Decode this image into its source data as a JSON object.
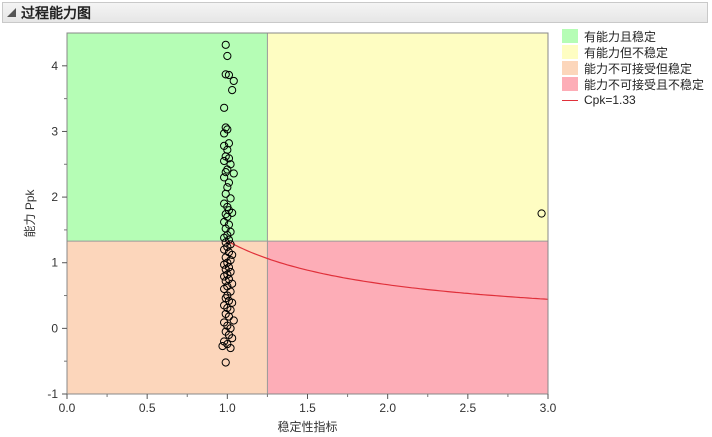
{
  "panel": {
    "title": "过程能力图"
  },
  "colors": {
    "capable_stable": "#b5fdb5",
    "capable_unstable": "#fefdc2",
    "incapable_stable": "#fcd6bb",
    "incapable_unstable": "#fdadb7",
    "curve": "#e0303a",
    "point": "#000000"
  },
  "legend": {
    "items": [
      {
        "label": "有能力且稳定",
        "color_key": "capable_stable"
      },
      {
        "label": "有能力但不稳定",
        "color_key": "capable_unstable"
      },
      {
        "label": "能力不可接受但稳定",
        "color_key": "incapable_stable"
      },
      {
        "label": "能力不可接受且不稳定",
        "color_key": "incapable_unstable"
      }
    ],
    "curve_label": "Cpk=1.33"
  },
  "chart_data": {
    "type": "scatter",
    "xlabel": "稳定性指标",
    "ylabel": "能力 Ppk",
    "xlim": [
      0,
      3
    ],
    "ylim": [
      -1,
      4.5
    ],
    "xticks": [
      "0.0",
      "0.5",
      "1.0",
      "1.5",
      "2.0",
      "2.5",
      "3.0"
    ],
    "xtick_values": [
      0,
      0.5,
      1,
      1.5,
      2,
      2.5,
      3
    ],
    "yticks": [
      "-1",
      "0",
      "1",
      "2",
      "3",
      "4"
    ],
    "ytick_values": [
      -1,
      0,
      1,
      2,
      3,
      4
    ],
    "stability_threshold": 1.25,
    "capability_threshold": 1.33,
    "curve": {
      "label": "Cpk=1.33",
      "x_from": 1.0,
      "x_to": 3.0
    },
    "points": [
      {
        "x": 0.99,
        "y": 4.32
      },
      {
        "x": 1.0,
        "y": 4.15
      },
      {
        "x": 0.99,
        "y": 3.87
      },
      {
        "x": 1.01,
        "y": 3.86
      },
      {
        "x": 1.04,
        "y": 3.77
      },
      {
        "x": 1.03,
        "y": 3.63
      },
      {
        "x": 0.98,
        "y": 3.36
      },
      {
        "x": 0.99,
        "y": 3.06
      },
      {
        "x": 1.0,
        "y": 3.03
      },
      {
        "x": 0.98,
        "y": 2.97
      },
      {
        "x": 1.01,
        "y": 2.82
      },
      {
        "x": 0.98,
        "y": 2.78
      },
      {
        "x": 1.0,
        "y": 2.72
      },
      {
        "x": 0.99,
        "y": 2.62
      },
      {
        "x": 1.01,
        "y": 2.59
      },
      {
        "x": 0.98,
        "y": 2.55
      },
      {
        "x": 1.02,
        "y": 2.5
      },
      {
        "x": 1.0,
        "y": 2.42
      },
      {
        "x": 0.99,
        "y": 2.38
      },
      {
        "x": 1.04,
        "y": 2.36
      },
      {
        "x": 0.98,
        "y": 2.3
      },
      {
        "x": 1.01,
        "y": 2.22
      },
      {
        "x": 1.0,
        "y": 2.15
      },
      {
        "x": 0.99,
        "y": 2.05
      },
      {
        "x": 1.02,
        "y": 1.98
      },
      {
        "x": 0.98,
        "y": 1.9
      },
      {
        "x": 1.0,
        "y": 1.85
      },
      {
        "x": 1.01,
        "y": 1.8
      },
      {
        "x": 1.03,
        "y": 1.76
      },
      {
        "x": 0.99,
        "y": 1.74
      },
      {
        "x": 1.0,
        "y": 1.7
      },
      {
        "x": 0.98,
        "y": 1.62
      },
      {
        "x": 1.01,
        "y": 1.58
      },
      {
        "x": 0.99,
        "y": 1.52
      },
      {
        "x": 1.02,
        "y": 1.47
      },
      {
        "x": 1.0,
        "y": 1.42
      },
      {
        "x": 0.98,
        "y": 1.38
      },
      {
        "x": 1.01,
        "y": 1.35
      },
      {
        "x": 0.99,
        "y": 1.31
      },
      {
        "x": 1.02,
        "y": 1.28
      },
      {
        "x": 1.0,
        "y": 1.24
      },
      {
        "x": 0.98,
        "y": 1.2
      },
      {
        "x": 1.01,
        "y": 1.16
      },
      {
        "x": 1.03,
        "y": 1.12
      },
      {
        "x": 0.99,
        "y": 1.08
      },
      {
        "x": 1.02,
        "y": 1.04
      },
      {
        "x": 1.0,
        "y": 1.0
      },
      {
        "x": 0.98,
        "y": 0.97
      },
      {
        "x": 1.01,
        "y": 0.93
      },
      {
        "x": 0.99,
        "y": 0.9
      },
      {
        "x": 1.02,
        "y": 0.86
      },
      {
        "x": 1.0,
        "y": 0.82
      },
      {
        "x": 0.98,
        "y": 0.79
      },
      {
        "x": 1.01,
        "y": 0.75
      },
      {
        "x": 0.99,
        "y": 0.72
      },
      {
        "x": 1.03,
        "y": 0.68
      },
      {
        "x": 1.0,
        "y": 0.64
      },
      {
        "x": 0.98,
        "y": 0.6
      },
      {
        "x": 1.02,
        "y": 0.56
      },
      {
        "x": 1.0,
        "y": 0.5
      },
      {
        "x": 0.99,
        "y": 0.46
      },
      {
        "x": 1.01,
        "y": 0.42
      },
      {
        "x": 1.03,
        "y": 0.39
      },
      {
        "x": 0.98,
        "y": 0.35
      },
      {
        "x": 1.0,
        "y": 0.31
      },
      {
        "x": 1.02,
        "y": 0.28
      },
      {
        "x": 0.99,
        "y": 0.22
      },
      {
        "x": 1.01,
        "y": 0.18
      },
      {
        "x": 1.04,
        "y": 0.12
      },
      {
        "x": 0.98,
        "y": 0.09
      },
      {
        "x": 1.0,
        "y": 0.04
      },
      {
        "x": 1.02,
        "y": 0.0
      },
      {
        "x": 0.99,
        "y": -0.05
      },
      {
        "x": 1.01,
        "y": -0.1
      },
      {
        "x": 1.03,
        "y": -0.15
      },
      {
        "x": 0.98,
        "y": -0.2
      },
      {
        "x": 1.0,
        "y": -0.24
      },
      {
        "x": 0.97,
        "y": -0.27
      },
      {
        "x": 1.02,
        "y": -0.3
      },
      {
        "x": 0.99,
        "y": -0.52
      },
      {
        "x": 2.96,
        "y": 1.75
      }
    ]
  }
}
